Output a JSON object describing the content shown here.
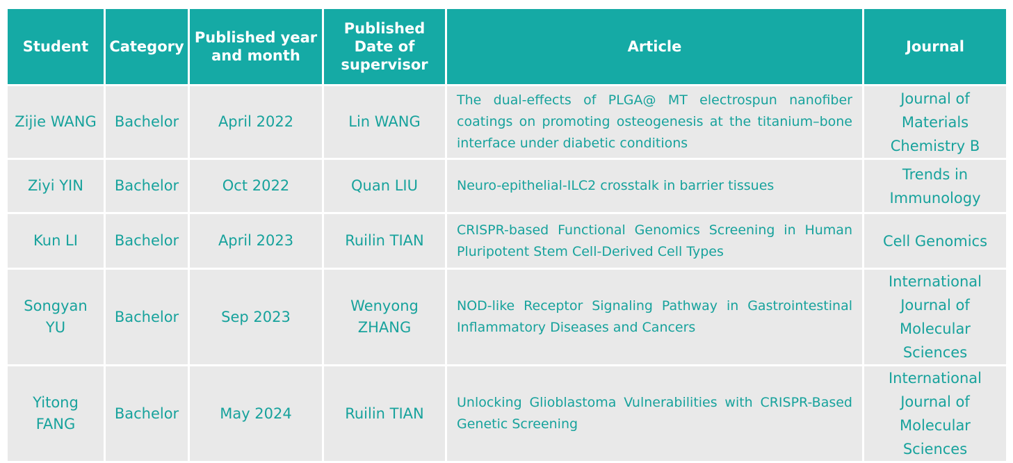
{
  "table": {
    "header": [
      "Student",
      "Category",
      "Published year and month",
      "Published Date of supervisor",
      "Article",
      "Journal"
    ],
    "rows": [
      [
        "Zijie WANG",
        "Bachelor",
        "April 2022",
        "Lin WANG",
        "The dual-effects of PLGA@ MT electrospun nanofiber coatings on promoting osteogenesis at the titanium–bone interface under diabetic conditions",
        "Journal of Materials Chemistry B"
      ],
      [
        "Ziyi YIN",
        "Bachelor",
        "Oct 2022",
        "Quan LIU",
        "Neuro-epithelial-ILC2 crosstalk in barrier tissues",
        "Trends in Immunology"
      ],
      [
        "Kun LI",
        "Bachelor",
        "April 2023",
        "Ruilin TIAN",
        "CRISPR-based Functional Genomics Screening in Human Pluripotent Stem Cell-Derived Cell Types",
        "Cell Genomics"
      ],
      [
        "Songyan YU",
        "Bachelor",
        "Sep 2023",
        "Wenyong ZHANG",
        "NOD-like Receptor Signaling Pathway in Gastrointestinal Inflammatory Diseases and Cancers",
        "International Journal of Molecular Sciences"
      ],
      [
        "Yitong FANG",
        "Bachelor",
        "May 2024",
        "Ruilin TIAN",
        "Unlocking Glioblastoma Vulnerabilities with CRISPR-Based Genetic Screening",
        "International Journal of Molecular Sciences"
      ]
    ]
  }
}
